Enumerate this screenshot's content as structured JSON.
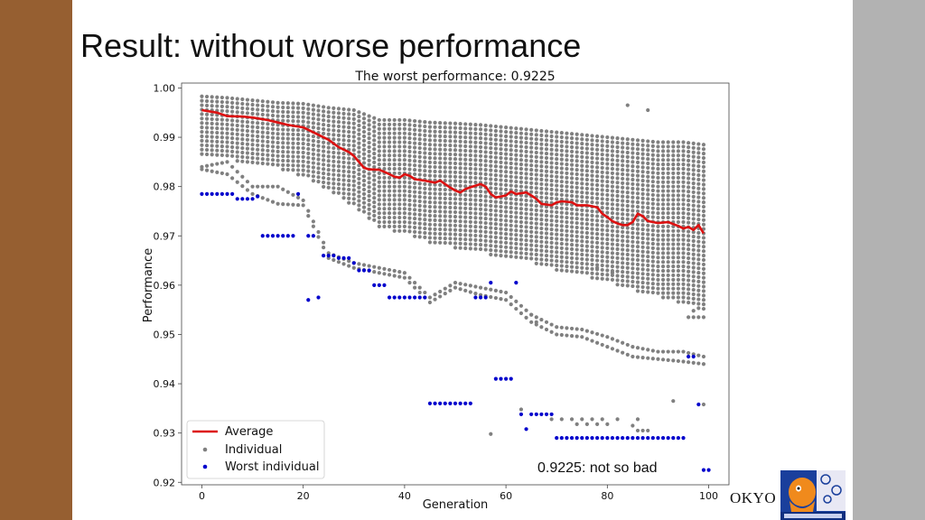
{
  "slide": {
    "title": "Result: without worse performance",
    "callout": "0.9225: not so bad",
    "footer_text": "OKYO",
    "logo_name": "furuta-kanno-lab-logo"
  },
  "colors": {
    "left_bar": "#965f31",
    "right_bar": "#b2b2b2",
    "average": "#dd1111",
    "individual": "#808080",
    "worst": "#0000cc"
  },
  "chart_data": {
    "type": "scatter",
    "title": "The worst performance: 0.9225",
    "xlabel": "Generation",
    "ylabel": "Performance",
    "xlim": [
      -4,
      104
    ],
    "ylim": [
      0.9195,
      1.001
    ],
    "x_ticks": [
      0,
      20,
      40,
      60,
      80,
      100
    ],
    "y_ticks": [
      0.92,
      0.93,
      0.94,
      0.95,
      0.96,
      0.97,
      0.98,
      0.99,
      1.0
    ],
    "y_tick_labels": [
      "0.92",
      "0.93",
      "0.94",
      "0.95",
      "0.96",
      "0.97",
      "0.98",
      "0.99",
      "1.00"
    ],
    "grid": false,
    "legend": {
      "placement": "lower-left",
      "entries": [
        "Average",
        "Individual",
        "Worst individual"
      ]
    },
    "series": [
      {
        "name": "Average",
        "kind": "line",
        "points": [
          [
            0,
            0.9955
          ],
          [
            3,
            0.995
          ],
          [
            5,
            0.9943
          ],
          [
            8,
            0.9942
          ],
          [
            10,
            0.994
          ],
          [
            13,
            0.9935
          ],
          [
            15,
            0.993
          ],
          [
            17,
            0.9925
          ],
          [
            20,
            0.992
          ],
          [
            22,
            0.991
          ],
          [
            25,
            0.9895
          ],
          [
            27,
            0.988
          ],
          [
            29,
            0.987
          ],
          [
            30,
            0.9862
          ],
          [
            31,
            0.985
          ],
          [
            32,
            0.9838
          ],
          [
            33,
            0.9835
          ],
          [
            35,
            0.9834
          ],
          [
            36,
            0.983
          ],
          [
            37,
            0.9825
          ],
          [
            38,
            0.982
          ],
          [
            39,
            0.9818
          ],
          [
            40,
            0.9825
          ],
          [
            41,
            0.9822
          ],
          [
            42,
            0.9815
          ],
          [
            44,
            0.9812
          ],
          [
            45,
            0.981
          ],
          [
            46,
            0.9808
          ],
          [
            47,
            0.9812
          ],
          [
            48,
            0.9805
          ],
          [
            49,
            0.9798
          ],
          [
            50,
            0.9792
          ],
          [
            51,
            0.9788
          ],
          [
            52,
            0.9795
          ],
          [
            54,
            0.9802
          ],
          [
            55,
            0.9805
          ],
          [
            56,
            0.98
          ],
          [
            57,
            0.9785
          ],
          [
            58,
            0.9778
          ],
          [
            59,
            0.978
          ],
          [
            60,
            0.9782
          ],
          [
            61,
            0.979
          ],
          [
            62,
            0.9785
          ],
          [
            64,
            0.9788
          ],
          [
            65,
            0.9782
          ],
          [
            66,
            0.9775
          ],
          [
            67,
            0.9765
          ],
          [
            69,
            0.9762
          ],
          [
            70,
            0.9768
          ],
          [
            71,
            0.977
          ],
          [
            73,
            0.9768
          ],
          [
            74,
            0.9762
          ],
          [
            76,
            0.9762
          ],
          [
            78,
            0.9758
          ],
          [
            79,
            0.9745
          ],
          [
            80,
            0.9738
          ],
          [
            81,
            0.973
          ],
          [
            82,
            0.9725
          ],
          [
            83,
            0.9722
          ],
          [
            84,
            0.9722
          ],
          [
            85,
            0.9728
          ],
          [
            86,
            0.9745
          ],
          [
            87,
            0.974
          ],
          [
            88,
            0.973
          ],
          [
            89,
            0.9728
          ],
          [
            90,
            0.9726
          ],
          [
            92,
            0.9728
          ],
          [
            94,
            0.972
          ],
          [
            95,
            0.9715
          ],
          [
            96,
            0.9718
          ],
          [
            97,
            0.9712
          ],
          [
            98,
            0.9722
          ],
          [
            99,
            0.9705
          ]
        ]
      },
      {
        "name": "Individual",
        "kind": "scatter",
        "columns": [
          [
            0,
            0.9983,
            0.986,
            [
              0.984,
              0.9835
            ]
          ],
          [
            5,
            0.998,
            0.9855,
            [
              0.985,
              0.9825
            ]
          ],
          [
            10,
            0.9975,
            0.9845,
            [
              0.98,
              0.9785
            ]
          ],
          [
            15,
            0.997,
            0.9835,
            [
              0.98,
              0.9765
            ]
          ],
          [
            20,
            0.9968,
            0.982,
            [
              0.9772,
              0.9762
            ]
          ],
          [
            25,
            0.996,
            0.979,
            [
              0.9665,
              0.9655
            ]
          ],
          [
            30,
            0.9955,
            0.976,
            [
              0.9645,
              0.9635
            ]
          ],
          [
            35,
            0.9935,
            0.9715,
            [
              0.9635,
              0.9625
            ]
          ],
          [
            40,
            0.9935,
            0.9705,
            [
              0.9625,
              0.9615
            ]
          ],
          [
            45,
            0.993,
            0.9685,
            [
              0.9575,
              0.9565
            ]
          ],
          [
            50,
            0.9928,
            0.9675,
            [
              0.9605,
              0.9595
            ]
          ],
          [
            55,
            0.9925,
            0.9665,
            [
              0.9595,
              0.958
            ]
          ],
          [
            60,
            0.992,
            0.9655,
            [
              0.9585,
              0.957
            ]
          ],
          [
            65,
            0.9915,
            0.9645,
            [
              0.954,
              0.9525
            ]
          ],
          [
            70,
            0.991,
            0.963,
            [
              0.9515,
              0.95
            ]
          ],
          [
            75,
            0.9905,
            0.962,
            [
              0.951,
              0.9495
            ]
          ],
          [
            80,
            0.99,
            0.9605,
            [
              0.9495,
              0.9475
            ]
          ],
          [
            85,
            0.9895,
            0.959,
            [
              0.9475,
              0.9455
            ]
          ],
          [
            90,
            0.989,
            0.9575,
            [
              0.9465,
              0.945
            ]
          ],
          [
            95,
            0.989,
            0.956,
            [
              0.9465,
              0.9445
            ]
          ],
          [
            99,
            0.9885,
            0.955,
            [
              0.9455,
              0.944
            ]
          ]
        ],
        "extra_points": [
          [
            65,
            0.954
          ],
          [
            66,
            0.9525
          ],
          [
            78,
            0.9635
          ],
          [
            81,
            0.9625
          ],
          [
            84,
            0.9965
          ],
          [
            88,
            0.9955
          ],
          [
            93,
            0.9365
          ],
          [
            99,
            0.9358
          ],
          [
            63,
            0.9348
          ],
          [
            57,
            0.9298
          ],
          [
            85,
            0.9315
          ],
          [
            79,
            0.9328
          ],
          [
            75,
            0.9328
          ],
          [
            73,
            0.9328
          ],
          [
            71,
            0.9328
          ],
          [
            69,
            0.9328
          ],
          [
            77,
            0.9328
          ],
          [
            82,
            0.9328
          ],
          [
            86,
            0.9328
          ],
          [
            86,
            0.9305
          ],
          [
            87,
            0.9305
          ],
          [
            88,
            0.9305
          ],
          [
            80,
            0.9318
          ],
          [
            78,
            0.9318
          ],
          [
            76,
            0.9318
          ],
          [
            74,
            0.9318
          ],
          [
            97,
            0.9548
          ],
          [
            97,
            0.9535
          ],
          [
            99,
            0.9535
          ],
          [
            98,
            0.9535
          ],
          [
            96,
            0.9535
          ]
        ]
      },
      {
        "name": "Worst individual",
        "kind": "scatter",
        "points": [
          [
            0,
            0.9785
          ],
          [
            1,
            0.9785
          ],
          [
            2,
            0.9785
          ],
          [
            3,
            0.9785
          ],
          [
            4,
            0.9785
          ],
          [
            5,
            0.9785
          ],
          [
            6,
            0.9785
          ],
          [
            7,
            0.9775
          ],
          [
            8,
            0.9775
          ],
          [
            9,
            0.9775
          ],
          [
            10,
            0.9775
          ],
          [
            11,
            0.978
          ],
          [
            12,
            0.97
          ],
          [
            13,
            0.97
          ],
          [
            14,
            0.97
          ],
          [
            15,
            0.97
          ],
          [
            16,
            0.97
          ],
          [
            17,
            0.97
          ],
          [
            18,
            0.97
          ],
          [
            19,
            0.9785
          ],
          [
            21,
            0.957
          ],
          [
            21,
            0.97
          ],
          [
            22,
            0.97
          ],
          [
            23,
            0.9575
          ],
          [
            24,
            0.966
          ],
          [
            25,
            0.966
          ],
          [
            26,
            0.966
          ],
          [
            27,
            0.9655
          ],
          [
            28,
            0.9655
          ],
          [
            29,
            0.9655
          ],
          [
            30,
            0.9645
          ],
          [
            31,
            0.963
          ],
          [
            32,
            0.963
          ],
          [
            33,
            0.963
          ],
          [
            34,
            0.96
          ],
          [
            35,
            0.96
          ],
          [
            36,
            0.96
          ],
          [
            37,
            0.9575
          ],
          [
            38,
            0.9575
          ],
          [
            39,
            0.9575
          ],
          [
            40,
            0.9575
          ],
          [
            41,
            0.9575
          ],
          [
            42,
            0.9575
          ],
          [
            43,
            0.9575
          ],
          [
            44,
            0.9575
          ],
          [
            45,
            0.936
          ],
          [
            46,
            0.936
          ],
          [
            47,
            0.936
          ],
          [
            48,
            0.936
          ],
          [
            49,
            0.936
          ],
          [
            50,
            0.936
          ],
          [
            51,
            0.936
          ],
          [
            52,
            0.936
          ],
          [
            53,
            0.936
          ],
          [
            54,
            0.9575
          ],
          [
            55,
            0.9575
          ],
          [
            56,
            0.9575
          ],
          [
            57,
            0.9605
          ],
          [
            58,
            0.941
          ],
          [
            59,
            0.941
          ],
          [
            60,
            0.941
          ],
          [
            61,
            0.941
          ],
          [
            62,
            0.9605
          ],
          [
            63,
            0.9338
          ],
          [
            64,
            0.9308
          ],
          [
            65,
            0.9338
          ],
          [
            66,
            0.9338
          ],
          [
            67,
            0.9338
          ],
          [
            68,
            0.9338
          ],
          [
            69,
            0.9338
          ],
          [
            70,
            0.929
          ],
          [
            71,
            0.929
          ],
          [
            72,
            0.929
          ],
          [
            73,
            0.929
          ],
          [
            74,
            0.929
          ],
          [
            75,
            0.929
          ],
          [
            76,
            0.929
          ],
          [
            77,
            0.929
          ],
          [
            78,
            0.929
          ],
          [
            79,
            0.929
          ],
          [
            80,
            0.929
          ],
          [
            81,
            0.929
          ],
          [
            82,
            0.929
          ],
          [
            83,
            0.929
          ],
          [
            84,
            0.929
          ],
          [
            85,
            0.929
          ],
          [
            86,
            0.929
          ],
          [
            87,
            0.929
          ],
          [
            88,
            0.929
          ],
          [
            89,
            0.929
          ],
          [
            90,
            0.929
          ],
          [
            91,
            0.929
          ],
          [
            92,
            0.929
          ],
          [
            93,
            0.929
          ],
          [
            94,
            0.929
          ],
          [
            95,
            0.929
          ],
          [
            96,
            0.9455
          ],
          [
            97,
            0.9455
          ],
          [
            98,
            0.9358
          ],
          [
            99,
            0.9225
          ],
          [
            100,
            0.9225
          ]
        ]
      }
    ]
  }
}
